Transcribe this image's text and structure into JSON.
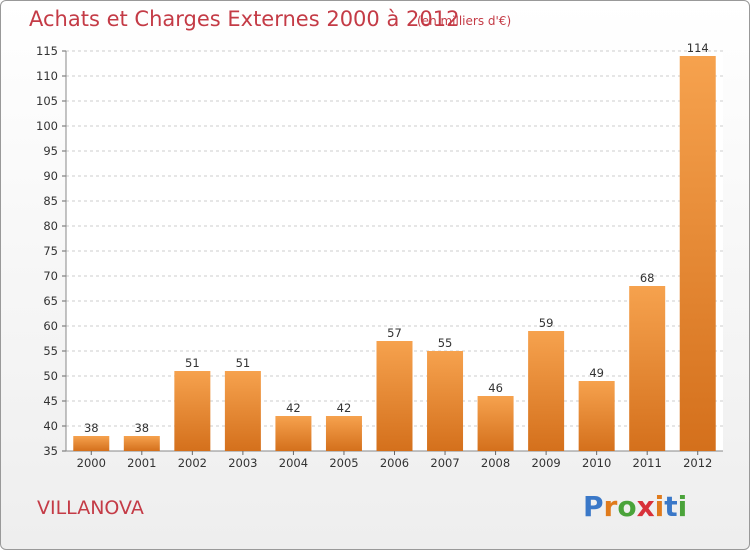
{
  "title": "Achats et Charges Externes 2000 à 2012",
  "subtitle": "(en milliers d'€)",
  "commune": "VILLANOVA",
  "logo": {
    "text": "Proxiti",
    "letter_colors": [
      "#3a78c8",
      "#e07b1c",
      "#4aa33a",
      "#d8313a",
      "#e07b1c",
      "#3a78c8",
      "#4aa33a"
    ]
  },
  "colors": {
    "title": "#c43b46",
    "bar_top": "#f6a24e",
    "bar_bottom": "#d4701c",
    "grid": "#cccccc"
  },
  "chart_data": {
    "type": "bar",
    "categories": [
      "2000",
      "2001",
      "2002",
      "2003",
      "2004",
      "2005",
      "2006",
      "2007",
      "2008",
      "2009",
      "2010",
      "2011",
      "2012"
    ],
    "values": [
      38,
      38,
      51,
      51,
      42,
      42,
      57,
      55,
      46,
      59,
      49,
      68,
      114
    ],
    "ylim": [
      35,
      115
    ],
    "yticks": [
      35,
      40,
      45,
      50,
      55,
      60,
      65,
      70,
      75,
      80,
      85,
      90,
      95,
      100,
      105,
      110,
      115
    ],
    "grid": true,
    "data_labels": true
  }
}
